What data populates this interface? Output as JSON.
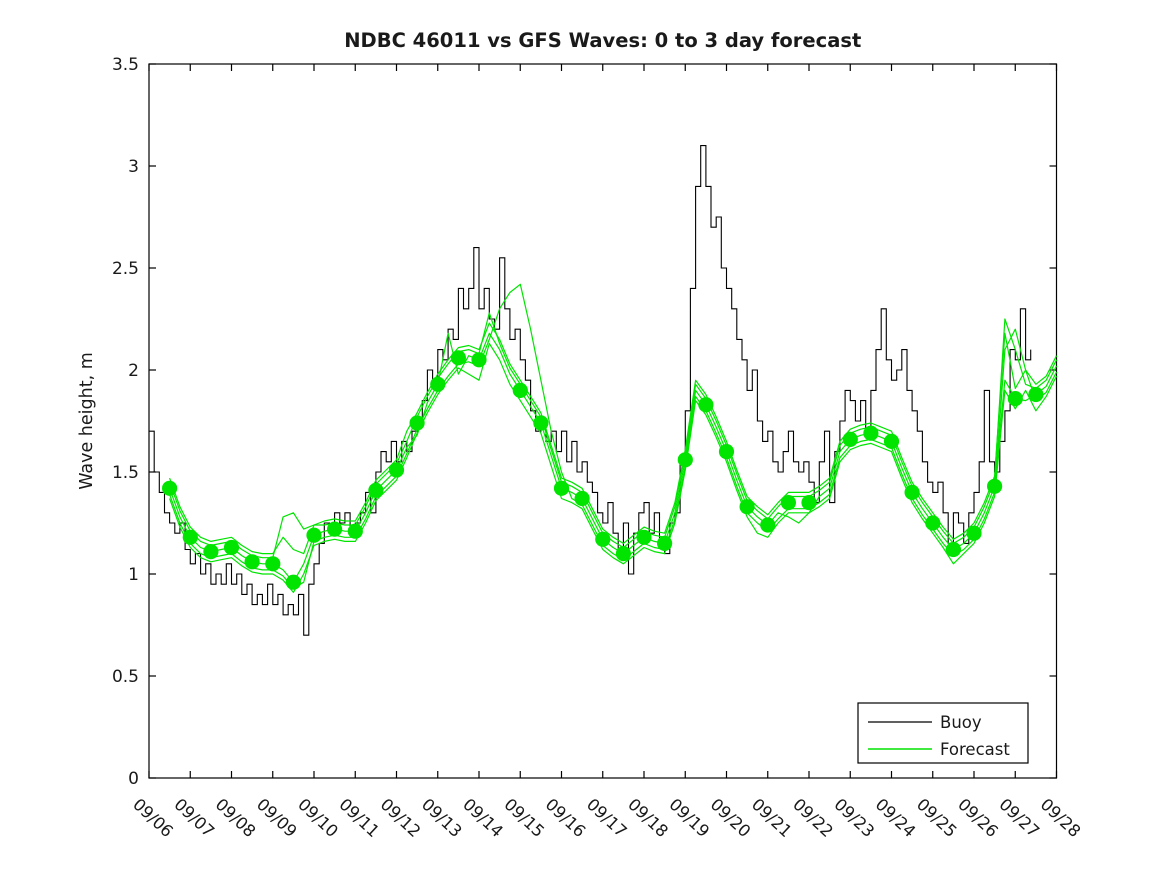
{
  "figure": {
    "background": "#ffffff"
  },
  "chart_data": {
    "type": "line",
    "title": "NDBC 46011 vs GFS Waves: 0 to 3 day forecast",
    "xlabel": "",
    "ylabel": "Wave height, m",
    "grid": false,
    "x_axis": {
      "range": [
        6,
        28
      ],
      "tick_values": [
        6,
        7,
        8,
        9,
        10,
        11,
        12,
        13,
        14,
        15,
        16,
        17,
        18,
        19,
        20,
        21,
        22,
        23,
        24,
        25,
        26,
        27,
        28
      ],
      "tick_labels": [
        "09/06",
        "09/07",
        "09/08",
        "09/09",
        "09/10",
        "09/11",
        "09/12",
        "09/13",
        "09/14",
        "09/15",
        "09/16",
        "09/17",
        "09/18",
        "09/19",
        "09/20",
        "09/21",
        "09/22",
        "09/23",
        "09/24",
        "09/25",
        "09/26",
        "09/27",
        "09/28"
      ],
      "tick_rotation_deg": 43
    },
    "y_axis": {
      "range": [
        0,
        3.5
      ],
      "tick_values": [
        0,
        0.5,
        1,
        1.5,
        2,
        2.5,
        3,
        3.5
      ],
      "tick_labels": [
        "0",
        "0.5",
        "1",
        "1.5",
        "2",
        "2.5",
        "3",
        "3.5"
      ]
    },
    "legend": {
      "position": "lower right",
      "entries": [
        {
          "label": "Buoy",
          "color": "#000000"
        },
        {
          "label": "Forecast",
          "color": "#00e400"
        }
      ]
    },
    "colors": {
      "buoy": "#000000",
      "forecast": "#00e400",
      "axis": "#000000"
    },
    "series": {
      "buoy": {
        "name": "Buoy",
        "style": "stairs",
        "color": "#000000",
        "t0": 6.0,
        "dt": 0.125,
        "values": [
          1.7,
          1.5,
          1.4,
          1.3,
          1.25,
          1.2,
          1.25,
          1.12,
          1.05,
          1.1,
          1.0,
          1.05,
          0.95,
          1.0,
          0.95,
          1.05,
          0.95,
          1.0,
          0.9,
          0.95,
          0.85,
          0.9,
          0.85,
          0.95,
          0.85,
          0.9,
          0.8,
          0.85,
          0.8,
          0.9,
          0.7,
          0.95,
          1.05,
          1.15,
          1.25,
          1.2,
          1.3,
          1.25,
          1.3,
          1.2,
          1.25,
          1.3,
          1.4,
          1.3,
          1.5,
          1.6,
          1.55,
          1.65,
          1.55,
          1.65,
          1.6,
          1.7,
          1.75,
          1.85,
          2.0,
          1.95,
          2.1,
          2.05,
          2.2,
          2.15,
          2.4,
          2.3,
          2.4,
          2.6,
          2.3,
          2.4,
          2.25,
          2.2,
          2.55,
          2.3,
          2.15,
          2.2,
          2.05,
          1.95,
          1.8,
          1.7,
          1.75,
          1.65,
          1.7,
          1.6,
          1.7,
          1.55,
          1.65,
          1.5,
          1.55,
          1.45,
          1.4,
          1.3,
          1.25,
          1.35,
          1.2,
          1.1,
          1.25,
          1.0,
          1.2,
          1.3,
          1.35,
          1.2,
          1.3,
          1.15,
          1.1,
          1.25,
          1.3,
          1.55,
          1.8,
          2.4,
          2.9,
          3.1,
          2.9,
          2.7,
          2.75,
          2.5,
          2.4,
          2.3,
          2.15,
          2.05,
          1.9,
          2.0,
          1.75,
          1.65,
          1.7,
          1.55,
          1.5,
          1.6,
          1.7,
          1.55,
          1.5,
          1.55,
          1.45,
          1.35,
          1.55,
          1.7,
          1.35,
          1.6,
          1.75,
          1.9,
          1.85,
          1.75,
          1.85,
          1.7,
          1.9,
          2.1,
          2.3,
          2.05,
          1.95,
          2.0,
          2.1,
          1.9,
          1.8,
          1.7,
          1.55,
          1.45,
          1.4,
          1.45,
          1.3,
          1.15,
          1.3,
          1.25,
          1.15,
          1.3,
          1.4,
          1.55,
          1.9,
          1.55,
          1.5,
          1.65,
          1.8,
          2.1,
          2.05,
          2.3,
          2.05,
          2.1
        ]
      },
      "forecast_mean": {
        "name": "Forecast",
        "color": "#00e400",
        "t0": 6.5,
        "dt": 0.25,
        "values": [
          1.42,
          1.28,
          1.18,
          1.13,
          1.11,
          1.12,
          1.13,
          1.09,
          1.06,
          1.05,
          1.05,
          1.02,
          0.96,
          1.05,
          1.19,
          1.21,
          1.22,
          1.21,
          1.21,
          1.3,
          1.41,
          1.46,
          1.51,
          1.62,
          1.74,
          1.84,
          1.93,
          2.0,
          2.06,
          2.07,
          2.05,
          2.18,
          2.1,
          1.98,
          1.9,
          1.82,
          1.74,
          1.58,
          1.42,
          1.4,
          1.37,
          1.27,
          1.17,
          1.13,
          1.1,
          1.14,
          1.18,
          1.16,
          1.15,
          1.3,
          1.56,
          1.9,
          1.83,
          1.72,
          1.6,
          1.46,
          1.33,
          1.28,
          1.24,
          1.3,
          1.35,
          1.35,
          1.35,
          1.38,
          1.42,
          1.6,
          1.66,
          1.68,
          1.69,
          1.67,
          1.65,
          1.52,
          1.4,
          1.32,
          1.25,
          1.18,
          1.12,
          1.15,
          1.2,
          1.3,
          1.43,
          1.8,
          1.86,
          1.95,
          1.88,
          1.92,
          2.02
        ]
      },
      "forecast_runs": [
        {
          "offset": 0.03,
          "tweaks": [
            [
              9.25,
              1.28
            ],
            [
              9.5,
              1.3
            ],
            [
              9.75,
              1.22
            ],
            [
              10,
              1.24
            ],
            [
              14.25,
              2.28
            ],
            [
              26.75,
              2.25
            ],
            [
              27,
              2.1
            ],
            [
              27.25,
              1.93
            ]
          ]
        },
        {
          "offset": -0.03,
          "tweaks": [
            [
              9.5,
              0.93
            ],
            [
              9.75,
              0.96
            ],
            [
              14.5,
              2.3
            ],
            [
              14.75,
              2.38
            ],
            [
              15,
              2.42
            ],
            [
              15.25,
              2.2
            ],
            [
              15.5,
              1.95
            ],
            [
              15.75,
              1.7
            ],
            [
              16,
              1.5
            ],
            [
              26.75,
              2.1
            ],
            [
              27,
              2.2
            ],
            [
              27.25,
              2.0
            ]
          ]
        },
        {
          "offset": 0.0,
          "tweaks": [
            [
              12.5,
              1.68
            ],
            [
              13.25,
              2.18
            ],
            [
              13.5,
              1.98
            ],
            [
              21.5,
              1.28
            ],
            [
              21.75,
              1.25
            ],
            [
              22,
              1.3
            ],
            [
              26.75,
              1.95
            ],
            [
              27.25,
              1.85
            ]
          ]
        },
        {
          "offset": 0.05,
          "tweaks": [
            [
              9.25,
              1.18
            ],
            [
              9.5,
              1.12
            ],
            [
              12.25,
              1.7
            ],
            [
              19.25,
              1.95
            ],
            [
              26.75,
              2.18
            ]
          ]
        },
        {
          "offset": -0.05,
          "tweaks": [
            [
              9,
              1.0
            ],
            [
              13.75,
              1.98
            ],
            [
              14,
              1.95
            ],
            [
              20.75,
              1.2
            ],
            [
              21,
              1.18
            ],
            [
              25.5,
              1.05
            ],
            [
              26.75,
              1.9
            ],
            [
              27.5,
              1.8
            ]
          ]
        }
      ],
      "forecast_markers": {
        "color": "#00e400",
        "points": [
          [
            6.5,
            1.42
          ],
          [
            7,
            1.18
          ],
          [
            7.5,
            1.11
          ],
          [
            8,
            1.13
          ],
          [
            8.5,
            1.06
          ],
          [
            9,
            1.05
          ],
          [
            9.5,
            0.96
          ],
          [
            10,
            1.19
          ],
          [
            10.5,
            1.22
          ],
          [
            11,
            1.21
          ],
          [
            11.5,
            1.41
          ],
          [
            12,
            1.51
          ],
          [
            12.5,
            1.74
          ],
          [
            13,
            1.93
          ],
          [
            13.5,
            2.06
          ],
          [
            14,
            2.05
          ],
          [
            15,
            1.9
          ],
          [
            15.5,
            1.74
          ],
          [
            16,
            1.42
          ],
          [
            16.5,
            1.37
          ],
          [
            17,
            1.17
          ],
          [
            17.5,
            1.1
          ],
          [
            18,
            1.18
          ],
          [
            18.5,
            1.15
          ],
          [
            19,
            1.56
          ],
          [
            19.5,
            1.83
          ],
          [
            20,
            1.6
          ],
          [
            20.5,
            1.33
          ],
          [
            21,
            1.24
          ],
          [
            21.5,
            1.35
          ],
          [
            22,
            1.35
          ],
          [
            23,
            1.66
          ],
          [
            23.5,
            1.69
          ],
          [
            24,
            1.65
          ],
          [
            24.5,
            1.4
          ],
          [
            25,
            1.25
          ],
          [
            25.5,
            1.12
          ],
          [
            26,
            1.2
          ],
          [
            26.5,
            1.43
          ],
          [
            27,
            1.86
          ],
          [
            27.5,
            1.88
          ]
        ]
      }
    }
  }
}
